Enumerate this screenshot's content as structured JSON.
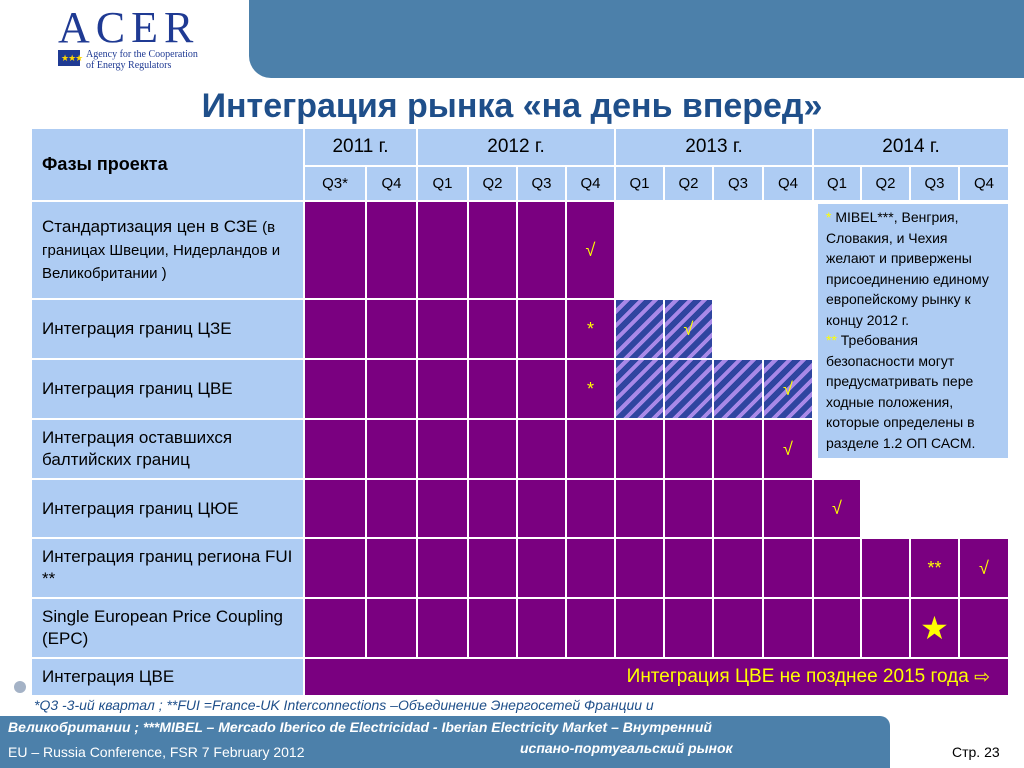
{
  "logo": {
    "word": "ACER",
    "subtitle_line1": "Agency for the Cooperation",
    "subtitle_line2": "of Energy Regulators",
    "flag_icon": "eu-flag-icon"
  },
  "title": "Интеграция рынка «на день вперед»",
  "table": {
    "phase_header": "Фазы проекта",
    "years": [
      "2011 г.",
      "2012 г.",
      "2013 г.",
      "2014 г."
    ],
    "quarters": [
      "Q3*",
      "Q4",
      "Q1",
      "Q2",
      "Q3",
      "Q4",
      "Q1",
      "Q2",
      "Q3",
      "Q4",
      "Q1",
      "Q2",
      "Q3",
      "Q4"
    ],
    "rows": [
      {
        "label": "Стандартизация цен в СЗЕ",
        "note": "(в границах Швеции, Нидерландов и Великобритании )",
        "mark": "√"
      },
      {
        "label": "Интеграция границ ЦЗЕ",
        "mark1": "*",
        "mark2": "√"
      },
      {
        "label": "Интеграция границ ЦВЕ",
        "mark1": "*",
        "mark2": "√"
      },
      {
        "label": "Интеграция оставшихся балтийских границ",
        "mark": "√"
      },
      {
        "label": "Интеграция границ ЦЮЕ",
        "mark": "√"
      },
      {
        "label": "Интеграция границ региона  FUI **",
        "mark1": "**",
        "mark2": "√"
      },
      {
        "label": "Single European Price Coupling (EPC)",
        "mark": "★"
      },
      {
        "label": "Интеграция ЦВЕ",
        "banner": "Интеграция ЦВЕ  не позднее 2015 года",
        "banner_icon": "⇨"
      }
    ]
  },
  "side_note": {
    "ast1": "*",
    "text1": " MIBEL***, Венгрия, Словакия, и Чехия желают и привержены присоединению единому европейскому рынку к концу 2012 г.",
    "ast2": "**",
    "text2": " Требования безопасности могут предусматривать пере ходные положения, которые определены в разделе 1.2 ОП САСМ."
  },
  "footnotes": {
    "line1": "*Q3 -3-ий квартал ;        **FUI =France-UK Interconnections –Объединение Энергосетей Франции и",
    "line2": "Великобритании ; ***MIBEL – Mercado Iberico de Electricidad - Iberian Electricity Market – Внутренний",
    "line3": "испано-португальский рынок"
  },
  "footer": {
    "conference": "EU – Russia Conference, FSR 7 February 2012",
    "page": "Стр.  23"
  },
  "colors": {
    "purple": "#7a0080",
    "header_blue": "#aeccf3",
    "band_blue": "#4c80aa",
    "title_blue": "#1f4f8a",
    "mark_yellow": "#ffff00"
  }
}
